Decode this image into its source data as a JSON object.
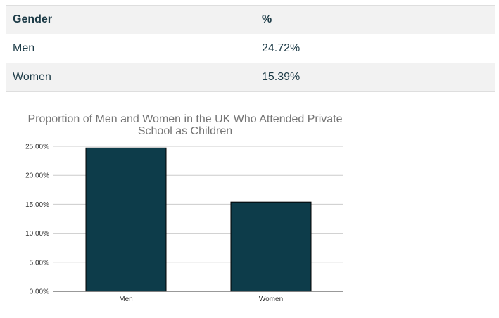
{
  "table": {
    "headers": [
      "Gender",
      "%"
    ],
    "rows": [
      {
        "label": "Men",
        "value": "24.72%"
      },
      {
        "label": "Women",
        "value": "15.39%"
      }
    ]
  },
  "chart_data": {
    "type": "bar",
    "title_lines": [
      "Proportion of Men and Women in the UK Who Attended Private",
      "School as Children"
    ],
    "categories": [
      "Men",
      "Women"
    ],
    "values": [
      24.72,
      15.39
    ],
    "ylim": [
      0,
      25
    ],
    "yticks": [
      "0.00%",
      "5.00%",
      "10.00%",
      "15.00%",
      "20.00%",
      "25.00%"
    ],
    "ytick_values": [
      0,
      5,
      10,
      15,
      20,
      25
    ],
    "xlabel": "",
    "ylabel": "",
    "grid": true,
    "bar_color": "#0d3c4a",
    "grid_color": "#cccccc",
    "title_color": "#757575"
  }
}
